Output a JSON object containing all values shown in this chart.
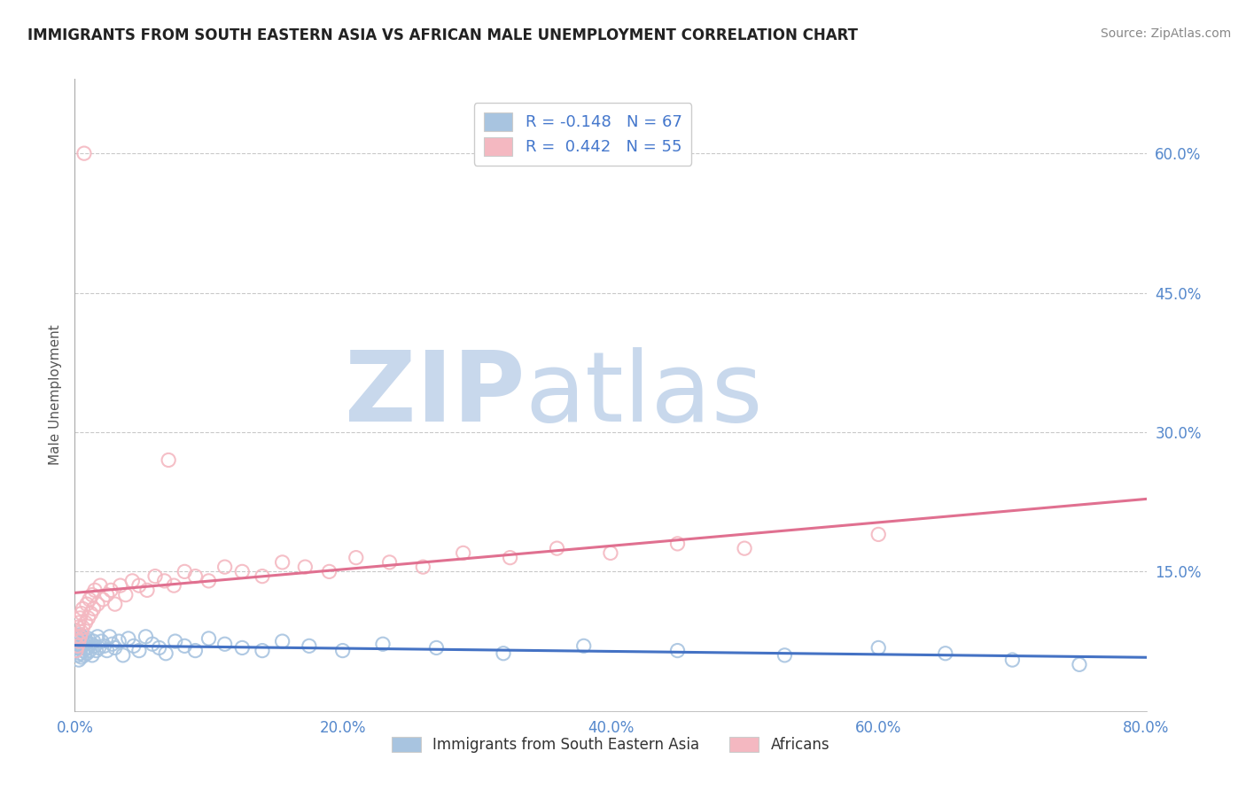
{
  "title": "IMMIGRANTS FROM SOUTH EASTERN ASIA VS AFRICAN MALE UNEMPLOYMENT CORRELATION CHART",
  "source": "Source: ZipAtlas.com",
  "ylabel": "Male Unemployment",
  "series": [
    {
      "name": "Immigrants from South Eastern Asia",
      "R": -0.148,
      "N": 67,
      "color": "#a8c4e0",
      "trend_color": "#4472c4",
      "x": [
        0.001,
        0.001,
        0.002,
        0.002,
        0.002,
        0.003,
        0.003,
        0.003,
        0.004,
        0.004,
        0.004,
        0.005,
        0.005,
        0.005,
        0.006,
        0.006,
        0.007,
        0.007,
        0.008,
        0.008,
        0.009,
        0.009,
        0.01,
        0.01,
        0.011,
        0.012,
        0.013,
        0.014,
        0.015,
        0.016,
        0.017,
        0.018,
        0.02,
        0.022,
        0.024,
        0.026,
        0.028,
        0.03,
        0.033,
        0.036,
        0.04,
        0.044,
        0.048,
        0.053,
        0.058,
        0.063,
        0.068,
        0.075,
        0.082,
        0.09,
        0.1,
        0.112,
        0.125,
        0.14,
        0.155,
        0.175,
        0.2,
        0.23,
        0.27,
        0.32,
        0.38,
        0.45,
        0.53,
        0.6,
        0.65,
        0.7,
        0.75
      ],
      "y": [
        0.065,
        0.075,
        0.06,
        0.07,
        0.08,
        0.055,
        0.068,
        0.078,
        0.062,
        0.072,
        0.082,
        0.058,
        0.07,
        0.08,
        0.065,
        0.075,
        0.06,
        0.072,
        0.067,
        0.077,
        0.062,
        0.073,
        0.068,
        0.078,
        0.065,
        0.072,
        0.06,
        0.075,
        0.07,
        0.065,
        0.08,
        0.068,
        0.075,
        0.07,
        0.065,
        0.08,
        0.072,
        0.068,
        0.075,
        0.06,
        0.078,
        0.07,
        0.065,
        0.08,
        0.072,
        0.068,
        0.062,
        0.075,
        0.07,
        0.065,
        0.078,
        0.072,
        0.068,
        0.065,
        0.075,
        0.07,
        0.065,
        0.072,
        0.068,
        0.062,
        0.07,
        0.065,
        0.06,
        0.068,
        0.062,
        0.055,
        0.05
      ]
    },
    {
      "name": "Africans",
      "R": 0.442,
      "N": 55,
      "color": "#f4b8c1",
      "trend_color": "#e07090",
      "x": [
        0.001,
        0.001,
        0.002,
        0.002,
        0.003,
        0.003,
        0.004,
        0.004,
        0.005,
        0.005,
        0.006,
        0.006,
        0.007,
        0.008,
        0.009,
        0.01,
        0.011,
        0.012,
        0.013,
        0.014,
        0.015,
        0.017,
        0.019,
        0.021,
        0.024,
        0.027,
        0.03,
        0.034,
        0.038,
        0.043,
        0.048,
        0.054,
        0.06,
        0.067,
        0.074,
        0.082,
        0.09,
        0.1,
        0.112,
        0.125,
        0.14,
        0.155,
        0.172,
        0.19,
        0.21,
        0.235,
        0.26,
        0.29,
        0.325,
        0.36,
        0.4,
        0.45,
        0.5,
        0.6,
        0.07
      ],
      "y": [
        0.065,
        0.08,
        0.07,
        0.09,
        0.075,
        0.095,
        0.08,
        0.1,
        0.085,
        0.105,
        0.09,
        0.11,
        0.6,
        0.095,
        0.115,
        0.1,
        0.12,
        0.105,
        0.125,
        0.11,
        0.13,
        0.115,
        0.135,
        0.12,
        0.125,
        0.13,
        0.115,
        0.135,
        0.125,
        0.14,
        0.135,
        0.13,
        0.145,
        0.14,
        0.135,
        0.15,
        0.145,
        0.14,
        0.155,
        0.15,
        0.145,
        0.16,
        0.155,
        0.15,
        0.165,
        0.16,
        0.155,
        0.17,
        0.165,
        0.175,
        0.17,
        0.18,
        0.175,
        0.19,
        0.27
      ]
    }
  ],
  "xlim": [
    0.0,
    0.8
  ],
  "ylim": [
    0.0,
    0.68
  ],
  "yticks": [
    0.0,
    0.15,
    0.3,
    0.45,
    0.6
  ],
  "ytick_labels": [
    "",
    "15.0%",
    "30.0%",
    "45.0%",
    "60.0%"
  ],
  "xticks": [
    0.0,
    0.2,
    0.4,
    0.6,
    0.8
  ],
  "xtick_labels": [
    "0.0%",
    "20.0%",
    "40.0%",
    "60.0%",
    "80.0%"
  ],
  "watermark_zip": "ZIP",
  "watermark_atlas": "atlas",
  "watermark_color_zip": "#c8d8ec",
  "watermark_color_atlas": "#c8d8ec",
  "background_color": "#ffffff",
  "grid_color": "#bbbbbb",
  "title_color": "#222222",
  "tick_color": "#5588cc",
  "legend_color": "#4477cc",
  "legend_box_edge": "#cccccc"
}
